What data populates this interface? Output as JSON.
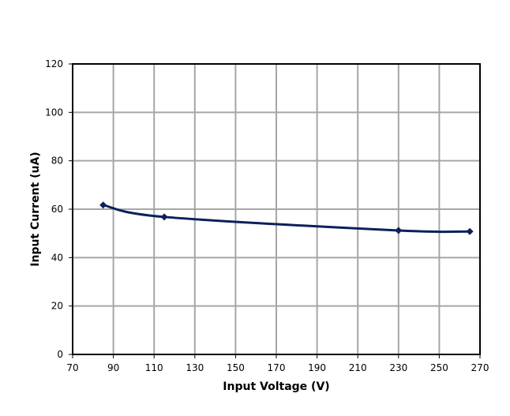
{
  "chart_data": {
    "type": "line",
    "title": "",
    "xlabel": "Input Voltage (V)",
    "ylabel": "Input Current (uA)",
    "xlim": [
      70,
      270
    ],
    "ylim": [
      0,
      120
    ],
    "x_ticks": [
      70,
      90,
      110,
      130,
      150,
      170,
      190,
      210,
      230,
      250,
      270
    ],
    "y_ticks": [
      0,
      20,
      40,
      60,
      80,
      100,
      120
    ],
    "grid": true,
    "legend": "none",
    "series": [
      {
        "color": "#0d1f5c",
        "marker": "diamond",
        "x": [
          85,
          115,
          230,
          265
        ],
        "y": [
          61.7,
          56.8,
          51.2,
          50.8
        ]
      }
    ]
  }
}
